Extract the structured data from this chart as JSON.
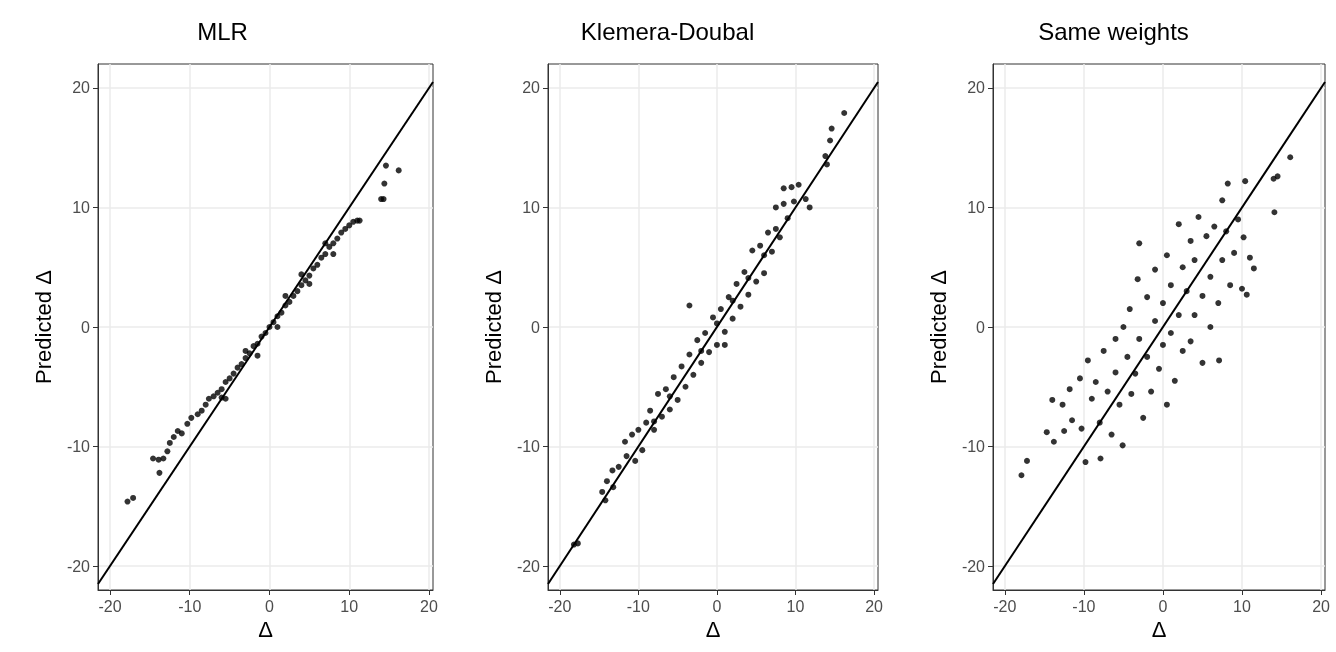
{
  "chart_data": [
    {
      "type": "scatter",
      "title": "MLR",
      "xlabel": "Δ",
      "ylabel": "Predicted Δ",
      "xlim": [
        -21.5,
        20.5
      ],
      "ylim": [
        -22,
        22
      ],
      "xticks": [
        -20,
        -10,
        0,
        10,
        20
      ],
      "yticks": [
        -20,
        -10,
        0,
        10,
        20
      ],
      "grid": true,
      "series": [
        {
          "color": "#000000",
          "marker": "circle",
          "x": [
            -17.8,
            -17.1,
            -14.6,
            -13.9,
            -13.3,
            -13.8,
            -12.8,
            -12.5,
            -12.0,
            -11.5,
            -11,
            -10.3,
            -9.8,
            -9.0,
            -8.5,
            -8.0,
            -7.6,
            -7.0,
            -6.5,
            -6,
            -5.5,
            -5,
            -4.5,
            -4,
            -3.5,
            -3,
            -2.5,
            -2,
            -1.5,
            -1,
            -0.5,
            0,
            0.5,
            1,
            1.5,
            2,
            2.5,
            3,
            3.5,
            4,
            4.5,
            5,
            5.5,
            6,
            6.5,
            7,
            7.5,
            8,
            8.5,
            9,
            9.5,
            10,
            10.5,
            11,
            11.3,
            -6,
            -3,
            2,
            5,
            7,
            8,
            -1.5,
            1,
            4,
            -5.5,
            14.3,
            14.0,
            14.4,
            14.6,
            16.2
          ],
          "values": [
            -14.6,
            -14.3,
            -11.0,
            -11.1,
            -11.0,
            -12.2,
            -10.4,
            -9.7,
            -9.2,
            -8.7,
            -8.9,
            -8.1,
            -7.6,
            -7.3,
            -7.0,
            -6.5,
            -6.0,
            -5.8,
            -5.5,
            -5.2,
            -4.6,
            -4.3,
            -3.9,
            -3.4,
            -3.1,
            -2.6,
            -2.2,
            -1.6,
            -1.4,
            -0.8,
            -0.5,
            0,
            0.4,
            0.9,
            1.2,
            1.8,
            2.1,
            2.6,
            3.0,
            3.5,
            3.9,
            4.3,
            4.9,
            5.2,
            5.8,
            6.1,
            6.7,
            7.0,
            7.4,
            7.9,
            8.2,
            8.5,
            8.8,
            8.9,
            8.9,
            -5.9,
            -2.0,
            2.6,
            3.6,
            7.0,
            6.1,
            -2.4,
            0.0,
            4.4,
            -6.0,
            10.7,
            10.7,
            12.0,
            13.5,
            13.1
          ]
        },
        {
          "type": "line",
          "color": "#000000",
          "x": [
            -21.5,
            20.5
          ],
          "values": [
            -21.5,
            20.5
          ]
        }
      ]
    },
    {
      "type": "scatter",
      "title": "Klemera-Doubal",
      "xlabel": "Δ",
      "ylabel": "Predicted Δ",
      "xlim": [
        -21.5,
        20.5
      ],
      "ylim": [
        -22,
        22
      ],
      "xticks": [
        -20,
        -10,
        0,
        10,
        20
      ],
      "yticks": [
        -20,
        -10,
        0,
        10,
        20
      ],
      "grid": true,
      "series": [
        {
          "color": "#000000",
          "marker": "circle",
          "x": [
            -18.2,
            -17.7,
            -14.6,
            -14.2,
            -14,
            -13.2,
            -13.3,
            -12.5,
            -11.5,
            -11.7,
            -10.4,
            -10.8,
            -10,
            -9.5,
            -9,
            -8.5,
            -8,
            -7.5,
            -7,
            -6.5,
            -6,
            -5.5,
            -5,
            -4.5,
            -4,
            -3.5,
            -3,
            -2.5,
            -3.5,
            -2,
            -1.5,
            -1,
            -0.5,
            0,
            0.5,
            1,
            1,
            1.5,
            2,
            2.5,
            3,
            3.5,
            4,
            4.5,
            5,
            5.5,
            6,
            6.5,
            7,
            7.5,
            7.5,
            8,
            8.5,
            8.5,
            9,
            9.5,
            9.8,
            10.4,
            11.3,
            11.8,
            13.8,
            14.0,
            14.4,
            14.6,
            16.2,
            0,
            2,
            -2,
            4,
            -6,
            6,
            -8
          ],
          "values": [
            -18.2,
            -18.1,
            -13.8,
            -14.5,
            -12.9,
            -13.4,
            -12.0,
            -11.7,
            -10.8,
            -9.6,
            -11.2,
            -9.0,
            -8.6,
            -10.3,
            -8.0,
            -7.0,
            -8.6,
            -5.6,
            -7.5,
            -5.2,
            -6.9,
            -4.2,
            -6.1,
            -3.3,
            -5.0,
            -2.3,
            -4.0,
            -1.1,
            1.8,
            -3.0,
            -0.5,
            -2.1,
            0.8,
            -1.5,
            1.5,
            -0.4,
            -1.5,
            2.5,
            0.7,
            3.6,
            1.7,
            4.6,
            2.7,
            6.4,
            3.8,
            6.8,
            4.5,
            7.9,
            6.3,
            8.2,
            10.0,
            7.5,
            10.3,
            11.6,
            9.1,
            11.7,
            10.5,
            11.9,
            10.7,
            10.0,
            14.3,
            13.6,
            15.6,
            16.6,
            17.9,
            0.3,
            2.2,
            -2.0,
            4.1,
            -5.8,
            6.0,
            -7.9
          ]
        },
        {
          "type": "line",
          "color": "#000000",
          "x": [
            -21.5,
            20.5
          ],
          "values": [
            -21.5,
            20.5
          ]
        }
      ]
    },
    {
      "type": "scatter",
      "title": "Same weights",
      "xlabel": "Δ",
      "ylabel": "Predicted Δ",
      "xlim": [
        -21.5,
        20.5
      ],
      "ylim": [
        -22,
        22
      ],
      "xticks": [
        -20,
        -10,
        0,
        10,
        20
      ],
      "yticks": [
        -20,
        -10,
        0,
        10,
        20
      ],
      "grid": true,
      "series": [
        {
          "color": "#000000",
          "marker": "circle",
          "x": [
            -17.9,
            -17.2,
            -14.7,
            -14,
            -13.8,
            -12.5,
            -12.7,
            -11.8,
            -11.5,
            -10.5,
            -10.3,
            -9.8,
            -9.5,
            -9,
            -8.5,
            -7.9,
            -8,
            -7.5,
            -7,
            -6.5,
            -6,
            -6,
            -5.5,
            -5.1,
            -5,
            -4.5,
            -4,
            -4.2,
            -3.5,
            -3,
            -3.2,
            -3,
            -2.5,
            -2,
            -2,
            -1.5,
            -1,
            -1,
            -0.5,
            0,
            0,
            0.5,
            0.5,
            1,
            1,
            1.5,
            2,
            2,
            2.5,
            2.5,
            3,
            3.5,
            3.5,
            4,
            4,
            4.5,
            5,
            5,
            5.5,
            6,
            6,
            6.5,
            7,
            7.1,
            7.5,
            7.5,
            8,
            8.2,
            8.5,
            9,
            9.5,
            10,
            10.4,
            10.2,
            10.6,
            11,
            11.5,
            14.0,
            14.5,
            14.1,
            16.1
          ],
          "values": [
            -12.4,
            -11.2,
            -8.8,
            -6.1,
            -9.6,
            -8.7,
            -6.5,
            -5.2,
            -7.8,
            -4.3,
            -8.5,
            -11.3,
            -2.8,
            -6.0,
            -4.6,
            -11.0,
            -8.0,
            -2.0,
            -5.4,
            -9.0,
            -1.0,
            -3.8,
            -6.5,
            -9.9,
            0.0,
            -2.5,
            -5.6,
            1.5,
            -3.9,
            7.0,
            4.0,
            -1.0,
            -7.6,
            2.5,
            -2.5,
            -5.4,
            4.8,
            0.5,
            -3.5,
            2.0,
            -1.5,
            6.0,
            -6.5,
            3.5,
            -0.5,
            -4.5,
            8.6,
            1.0,
            5.0,
            -2.0,
            3.0,
            7.2,
            -1.2,
            5.6,
            1.0,
            9.2,
            2.6,
            -3.0,
            7.6,
            4.2,
            0.0,
            8.4,
            2.0,
            -2.8,
            10.6,
            5.6,
            8.0,
            12.0,
            3.5,
            6.2,
            9.0,
            3.2,
            12.2,
            7.5,
            2.7,
            5.8,
            4.9,
            12.4,
            12.6,
            9.6,
            14.2
          ]
        },
        {
          "type": "line",
          "color": "#000000",
          "x": [
            -21.5,
            20.5
          ],
          "values": [
            -21.5,
            20.5
          ]
        }
      ]
    }
  ]
}
